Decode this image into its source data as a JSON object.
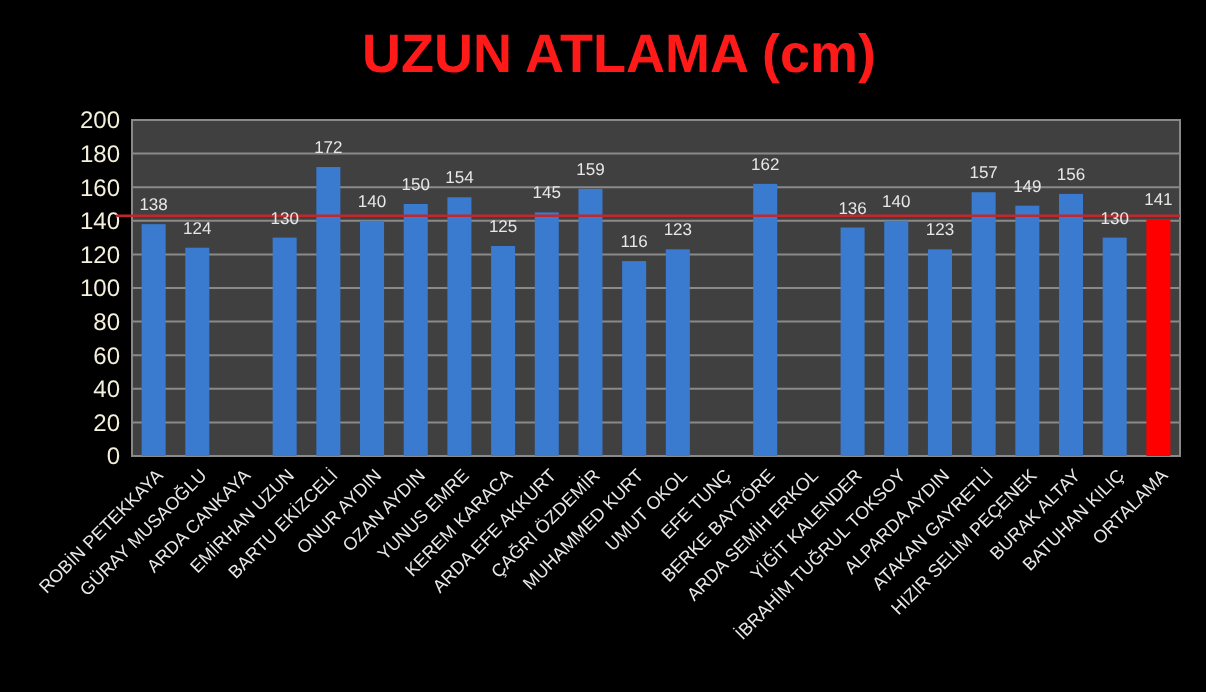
{
  "chart_data": {
    "type": "bar",
    "title": "UZUN ATLAMA (cm)",
    "categories": [
      "ROBİN PETEKKAYA",
      "GÜRAY MUSAOĞLU",
      "ARDA CANKAYA",
      "EMİRHAN UZUN",
      "BARTU EKİZCELİ",
      "ONUR AYDIN",
      "OZAN AYDIN",
      "YUNUS EMRE",
      "KEREM KARACA",
      "ARDA EFE AKKURT",
      "ÇAĞRI ÖZDEMİR",
      "MUHAMMED KURT",
      "UMUT OKOL",
      "EFE TUNÇ",
      "BERKE BAYTÖRE",
      "ARDA SEMİH ERKOL",
      "YİĞİT KALENDER",
      "İBRAHİM TUĞRUL TOKSOY",
      "ALPARDA AYDIN",
      "ATAKAN GAYRETLİ",
      "HIZIR SELİM PEÇENEK",
      "BURAK ALTAY",
      "BATUHAN KILIÇ",
      "ORTALAMA"
    ],
    "values": [
      138,
      124,
      null,
      130,
      172,
      140,
      150,
      154,
      125,
      145,
      159,
      116,
      123,
      null,
      162,
      null,
      136,
      140,
      123,
      157,
      149,
      156,
      130,
      141
    ],
    "colors": [
      "#3a7bd0",
      "#3a7bd0",
      null,
      "#3a7bd0",
      "#3a7bd0",
      "#3a7bd0",
      "#3a7bd0",
      "#3a7bd0",
      "#3a7bd0",
      "#3a7bd0",
      "#3a7bd0",
      "#3a7bd0",
      "#3a7bd0",
      null,
      "#3a7bd0",
      null,
      "#3a7bd0",
      "#3a7bd0",
      "#3a7bd0",
      "#3a7bd0",
      "#3a7bd0",
      "#3a7bd0",
      "#3a7bd0",
      "#ff0000"
    ],
    "ylim": [
      0,
      200
    ],
    "yticks": [
      0,
      20,
      40,
      60,
      80,
      100,
      120,
      140,
      160,
      180,
      200
    ],
    "grid": "y",
    "data_labels": true,
    "ref_lines": [
      {
        "axis": "y",
        "value": 143,
        "color": "#c0282d"
      }
    ]
  }
}
